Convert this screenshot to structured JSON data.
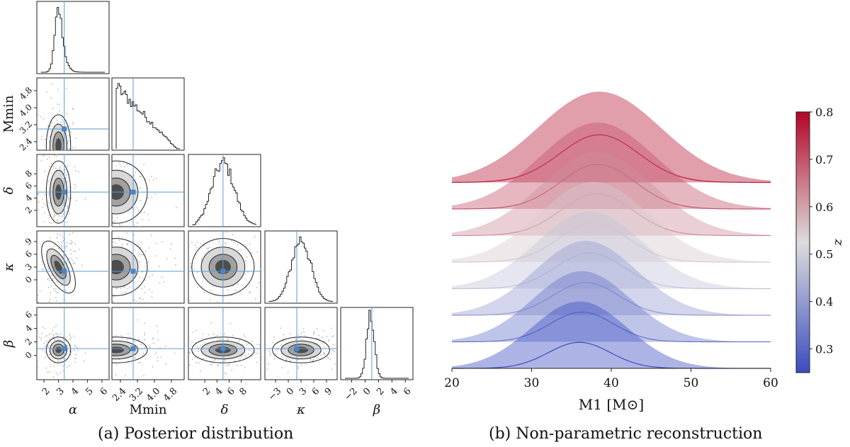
{
  "captions": {
    "a": "(a) Posterior distribution",
    "b": "(b) Non-parametric reconstruction"
  },
  "chart_data": [
    {
      "type": "corner",
      "parameters": [
        {
          "key": "alpha",
          "label": "α",
          "ticks": [
            "2",
            "3",
            "4",
            "5",
            "6"
          ],
          "range": [
            1.8,
            6.2
          ],
          "truth": 3.4,
          "mode": 3.0,
          "width": 0.35
        },
        {
          "key": "Mmin",
          "label": "Mmin",
          "ticks": [
            "2.4",
            "3.2",
            "4.0",
            "4.8"
          ],
          "range": [
            2.2,
            5.2
          ],
          "truth": 3.0,
          "mode": 2.2,
          "width": 1.2
        },
        {
          "key": "delta",
          "label": "δ",
          "ticks": [
            "2",
            "4",
            "6",
            "8"
          ],
          "range": [
            0.0,
            10.5
          ],
          "truth": 5.0,
          "mode": 5.0,
          "width": 2.2
        },
        {
          "key": "kappa",
          "label": "κ",
          "ticks": [
            "−3",
            "0",
            "3",
            "6",
            "9"
          ],
          "range": [
            -4.5,
            10.5
          ],
          "truth": 2.0,
          "mode": 3.0,
          "width": 2.8
        },
        {
          "key": "beta",
          "label": "β",
          "ticks": [
            "−2",
            "0",
            "2",
            "4",
            "6"
          ],
          "range": [
            -3.0,
            6.5
          ],
          "truth": 1.0,
          "mode": 0.8,
          "width": 0.8
        }
      ],
      "y_ticks": {
        "Mmin": [
          "2.4",
          "3.2",
          "4.0",
          "4.8"
        ],
        "delta": [
          "2",
          "4",
          "6",
          "8"
        ],
        "kappa": [
          "0",
          "3",
          "6",
          "9"
        ],
        "beta": [
          "0",
          "2",
          "4",
          "6"
        ]
      }
    },
    {
      "type": "ridgeline",
      "xlabel": "M1 [M⊙]",
      "xlim": [
        20,
        60
      ],
      "xticks": [
        "20",
        "30",
        "40",
        "50",
        "60"
      ],
      "colorbar": {
        "label": "z",
        "range": [
          0.25,
          0.8
        ],
        "ticks": [
          "0.3",
          "0.4",
          "0.5",
          "0.6",
          "0.7",
          "0.8"
        ],
        "low_color": "#3b4cc0",
        "mid_color": "#dddddd",
        "high_color": "#b40426"
      },
      "series": [
        {
          "z": 0.25,
          "peak_mass": 36.0,
          "median_height": 0.35,
          "band_upper": 0.9,
          "width": 5.5
        },
        {
          "z": 0.325,
          "peak_mass": 36.3,
          "median_height": 0.4,
          "band_upper": 0.95,
          "width": 5.6
        },
        {
          "z": 0.4,
          "peak_mass": 36.8,
          "median_height": 0.44,
          "band_upper": 1.0,
          "width": 5.8
        },
        {
          "z": 0.475,
          "peak_mass": 37.3,
          "median_height": 0.48,
          "band_upper": 1.04,
          "width": 6.0
        },
        {
          "z": 0.55,
          "peak_mass": 37.8,
          "median_height": 0.52,
          "band_upper": 1.08,
          "width": 6.2
        },
        {
          "z": 0.625,
          "peak_mass": 38.2,
          "median_height": 0.56,
          "band_upper": 1.12,
          "width": 6.4
        },
        {
          "z": 0.7,
          "peak_mass": 38.3,
          "median_height": 0.6,
          "band_upper": 1.16,
          "width": 6.6
        },
        {
          "z": 0.775,
          "peak_mass": 38.5,
          "median_height": 0.64,
          "band_upper": 1.22,
          "width": 7.0
        }
      ]
    }
  ]
}
